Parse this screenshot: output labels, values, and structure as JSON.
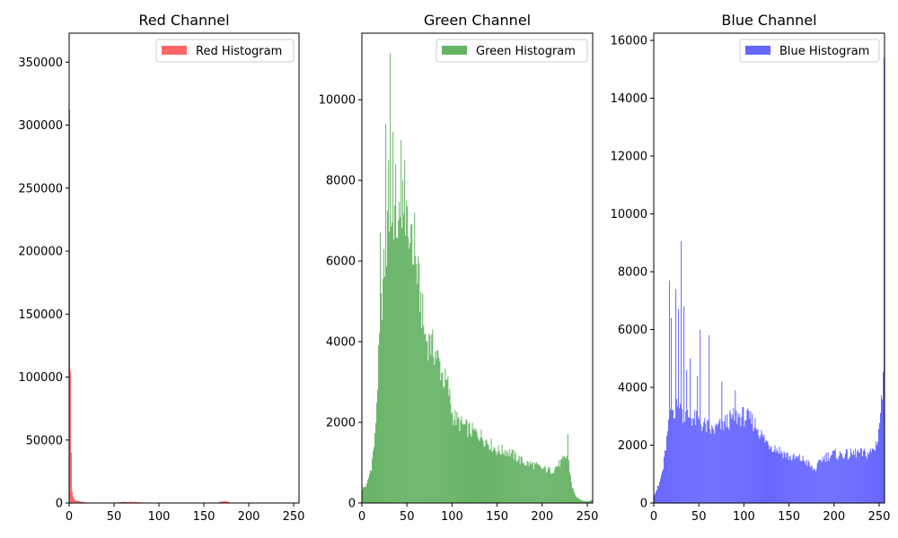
{
  "chart_data": [
    {
      "type": "bar",
      "title": "Red Channel",
      "legend": "Red Histogram",
      "legend_position": "top-right",
      "color": "#ff0000",
      "alpha": 0.6,
      "xlim": [
        0,
        256
      ],
      "ylim": [
        0,
        373000
      ],
      "xticks": [
        0,
        50,
        100,
        150,
        200,
        250
      ],
      "yticks": [
        0,
        50000,
        100000,
        150000,
        200000,
        250000,
        300000,
        350000
      ],
      "ytick_labels": [
        "0",
        "50000",
        "100000",
        "150000",
        "200000",
        "250000",
        "300000",
        "350000"
      ],
      "grid": false,
      "bins": 256,
      "profile": [
        [
          0,
          355000
        ],
        [
          1,
          40000
        ],
        [
          2,
          18000
        ],
        [
          3,
          9000
        ],
        [
          4,
          5500
        ],
        [
          5,
          3500
        ],
        [
          6,
          2500
        ],
        [
          8,
          1800
        ],
        [
          10,
          1400
        ],
        [
          12,
          1100
        ],
        [
          15,
          900
        ],
        [
          18,
          500
        ],
        [
          22,
          300
        ],
        [
          30,
          150
        ],
        [
          48,
          120
        ],
        [
          55,
          600
        ],
        [
          60,
          900
        ],
        [
          70,
          900
        ],
        [
          80,
          500
        ],
        [
          90,
          150
        ],
        [
          120,
          100
        ],
        [
          165,
          200
        ],
        [
          168,
          1200
        ],
        [
          175,
          1300
        ],
        [
          180,
          200
        ],
        [
          200,
          80
        ],
        [
          255,
          50
        ]
      ],
      "spikes": [
        [
          1,
          105000
        ],
        [
          2,
          40000
        ],
        [
          60,
          1100
        ],
        [
          68,
          1200
        ],
        [
          73,
          1100
        ],
        [
          172,
          1500
        ]
      ]
    },
    {
      "type": "bar",
      "title": "Green Channel",
      "legend": "Green Histogram",
      "legend_position": "top-right",
      "color": "#008000",
      "alpha": 0.6,
      "xlim": [
        0,
        256
      ],
      "ylim": [
        0,
        11650
      ],
      "xticks": [
        0,
        50,
        100,
        150,
        200,
        250
      ],
      "yticks": [
        0,
        2000,
        4000,
        6000,
        8000,
        10000
      ],
      "ytick_labels": [
        "0",
        "2000",
        "4000",
        "6000",
        "8000",
        "10000"
      ],
      "grid": false,
      "bins": 256,
      "profile": [
        [
          0,
          350
        ],
        [
          5,
          450
        ],
        [
          10,
          900
        ],
        [
          14,
          1600
        ],
        [
          17,
          3000
        ],
        [
          20,
          4500
        ],
        [
          25,
          6000
        ],
        [
          30,
          7000
        ],
        [
          35,
          7200
        ],
        [
          40,
          6900
        ],
        [
          45,
          6800
        ],
        [
          50,
          6700
        ],
        [
          55,
          6300
        ],
        [
          60,
          5900
        ],
        [
          65,
          5000
        ],
        [
          70,
          4100
        ],
        [
          75,
          3950
        ],
        [
          80,
          3800
        ],
        [
          85,
          3500
        ],
        [
          90,
          3100
        ],
        [
          95,
          2900
        ],
        [
          100,
          2200
        ],
        [
          105,
          2050
        ],
        [
          110,
          1950
        ],
        [
          120,
          1800
        ],
        [
          130,
          1700
        ],
        [
          140,
          1500
        ],
        [
          150,
          1300
        ],
        [
          160,
          1300
        ],
        [
          170,
          1150
        ],
        [
          180,
          1000
        ],
        [
          190,
          950
        ],
        [
          200,
          850
        ],
        [
          210,
          800
        ],
        [
          215,
          900
        ],
        [
          220,
          1000
        ],
        [
          225,
          1100
        ],
        [
          228,
          1200
        ],
        [
          230,
          800
        ],
        [
          233,
          400
        ],
        [
          236,
          200
        ],
        [
          240,
          100
        ],
        [
          245,
          50
        ],
        [
          250,
          40
        ],
        [
          255,
          80
        ]
      ],
      "spikes": [
        [
          20,
          6700
        ],
        [
          26,
          9400
        ],
        [
          29,
          8500
        ],
        [
          31,
          11150
        ],
        [
          34,
          9200
        ],
        [
          37,
          8400
        ],
        [
          40,
          7000
        ],
        [
          43,
          9000
        ],
        [
          45,
          8000
        ],
        [
          47,
          8500
        ],
        [
          54,
          6900
        ],
        [
          58,
          7200
        ],
        [
          68,
          4400
        ],
        [
          75,
          4150
        ],
        [
          228,
          1700
        ]
      ]
    },
    {
      "type": "bar",
      "title": "Blue Channel",
      "legend": "Blue Histogram",
      "legend_position": "top-right",
      "color": "#0000ff",
      "alpha": 0.6,
      "xlim": [
        0,
        256
      ],
      "ylim": [
        0,
        16250
      ],
      "xticks": [
        0,
        50,
        100,
        150,
        200,
        250
      ],
      "yticks": [
        0,
        2000,
        4000,
        6000,
        8000,
        10000,
        12000,
        14000,
        16000
      ],
      "ytick_labels": [
        "0",
        "2000",
        "4000",
        "6000",
        "8000",
        "10000",
        "12000",
        "14000",
        "16000"
      ],
      "grid": false,
      "bins": 256,
      "profile": [
        [
          0,
          300
        ],
        [
          5,
          600
        ],
        [
          10,
          1200
        ],
        [
          14,
          2200
        ],
        [
          17,
          2800
        ],
        [
          20,
          3200
        ],
        [
          25,
          3300
        ],
        [
          30,
          3200
        ],
        [
          35,
          3000
        ],
        [
          40,
          3000
        ],
        [
          45,
          2900
        ],
        [
          50,
          2800
        ],
        [
          55,
          2700
        ],
        [
          60,
          2600
        ],
        [
          65,
          2500
        ],
        [
          70,
          2600
        ],
        [
          75,
          2700
        ],
        [
          80,
          2800
        ],
        [
          85,
          2900
        ],
        [
          90,
          3000
        ],
        [
          95,
          3000
        ],
        [
          100,
          3000
        ],
        [
          105,
          2900
        ],
        [
          110,
          2800
        ],
        [
          115,
          2600
        ],
        [
          120,
          2300
        ],
        [
          125,
          2100
        ],
        [
          130,
          2000
        ],
        [
          135,
          1900
        ],
        [
          140,
          1800
        ],
        [
          145,
          1700
        ],
        [
          150,
          1600
        ],
        [
          155,
          1550
        ],
        [
          160,
          1550
        ],
        [
          165,
          1500
        ],
        [
          170,
          1400
        ],
        [
          175,
          1200
        ],
        [
          178,
          1150
        ],
        [
          182,
          1300
        ],
        [
          185,
          1500
        ],
        [
          190,
          1600
        ],
        [
          195,
          1650
        ],
        [
          200,
          1700
        ],
        [
          205,
          1650
        ],
        [
          210,
          1700
        ],
        [
          215,
          1650
        ],
        [
          220,
          1700
        ],
        [
          225,
          1750
        ],
        [
          230,
          1700
        ],
        [
          235,
          1700
        ],
        [
          240,
          1750
        ],
        [
          245,
          1900
        ],
        [
          248,
          2300
        ],
        [
          250,
          2800
        ],
        [
          252,
          3500
        ],
        [
          254,
          4100
        ],
        [
          255,
          4300
        ]
      ],
      "spikes": [
        [
          17,
          7700
        ],
        [
          19,
          6400
        ],
        [
          24,
          7400
        ],
        [
          27,
          6700
        ],
        [
          30,
          9050
        ],
        [
          33,
          6800
        ],
        [
          36,
          4600
        ],
        [
          40,
          5000
        ],
        [
          48,
          4400
        ],
        [
          51,
          6000
        ],
        [
          61,
          5800
        ],
        [
          75,
          4200
        ],
        [
          90,
          3900
        ],
        [
          255,
          15400
        ]
      ]
    }
  ]
}
